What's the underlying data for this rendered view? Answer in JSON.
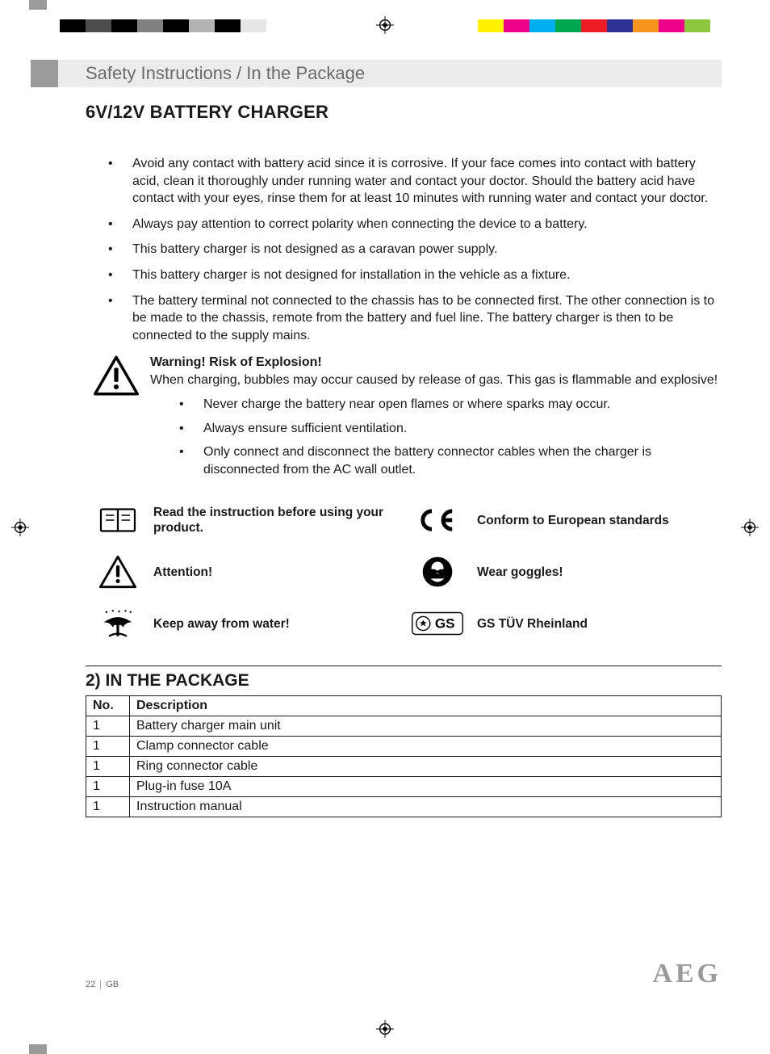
{
  "register_bars": {
    "left_colors": [
      "#000000",
      "#4d4d4d",
      "#000000",
      "#808080",
      "#000000",
      "#b3b3b3",
      "#000000",
      "#e6e6e6",
      "#ffffff"
    ],
    "right_colors": [
      "#fff200",
      "#ec008c",
      "#00aeef",
      "#00a651",
      "#ed1c24",
      "#2e3192",
      "#f7941d",
      "#ec008c",
      "#8dc63f"
    ]
  },
  "header": {
    "section_title": "Safety Instructions / In the Package",
    "main_heading": "6V/12V BATTERY CHARGER"
  },
  "safety_bullets": [
    "Avoid any contact with battery acid since it is corrosive. If your face comes into contact with battery acid, clean it thoroughly under running water and contact your doctor. Should the battery acid have contact with your eyes, rinse them for at least 10 minutes with running water and contact your doctor.",
    "Always pay attention to correct polarity when connecting the device to a battery.",
    "This battery charger is not designed as a caravan power supply.",
    "This battery charger is not designed for installation in the vehicle as a fixture.",
    "The battery terminal not connected to the chassis has to be connected first. The other connection is to be made to the chassis, remote from the battery and fuel line. The battery charger is then to be connected to the supply mains."
  ],
  "warning": {
    "title": "Warning! Risk of Explosion!",
    "text": "When charging, bubbles may occur caused by release of gas. This gas is flammable and explosive!",
    "sub_bullets": [
      "Never charge the battery near open flames or where sparks may occur.",
      "Always ensure sufficient ventilation.",
      "Only connect and disconnect the battery connector cables when the charger is disconnected from the AC wall outlet."
    ]
  },
  "symbols": [
    {
      "icon": "manual",
      "label": "Read the instruction before using your product."
    },
    {
      "icon": "ce",
      "label": "Conform to European standards"
    },
    {
      "icon": "attention",
      "label": "Attention!"
    },
    {
      "icon": "goggles",
      "label": "Wear goggles!"
    },
    {
      "icon": "water",
      "label": "Keep away from water!"
    },
    {
      "icon": "gs",
      "label": "GS TÜV Rheinland"
    }
  ],
  "package": {
    "section_heading": "2)   IN THE PACKAGE",
    "columns": [
      "No.",
      "Description"
    ],
    "rows": [
      [
        "1",
        "Battery charger main unit"
      ],
      [
        "1",
        "Clamp connector cable"
      ],
      [
        "1",
        "Ring connector cable"
      ],
      [
        "1",
        "Plug-in fuse 10A"
      ],
      [
        "1",
        "Instruction manual"
      ]
    ]
  },
  "footer": {
    "page_number": "22",
    "lang": "GB",
    "brand": "AEG"
  }
}
